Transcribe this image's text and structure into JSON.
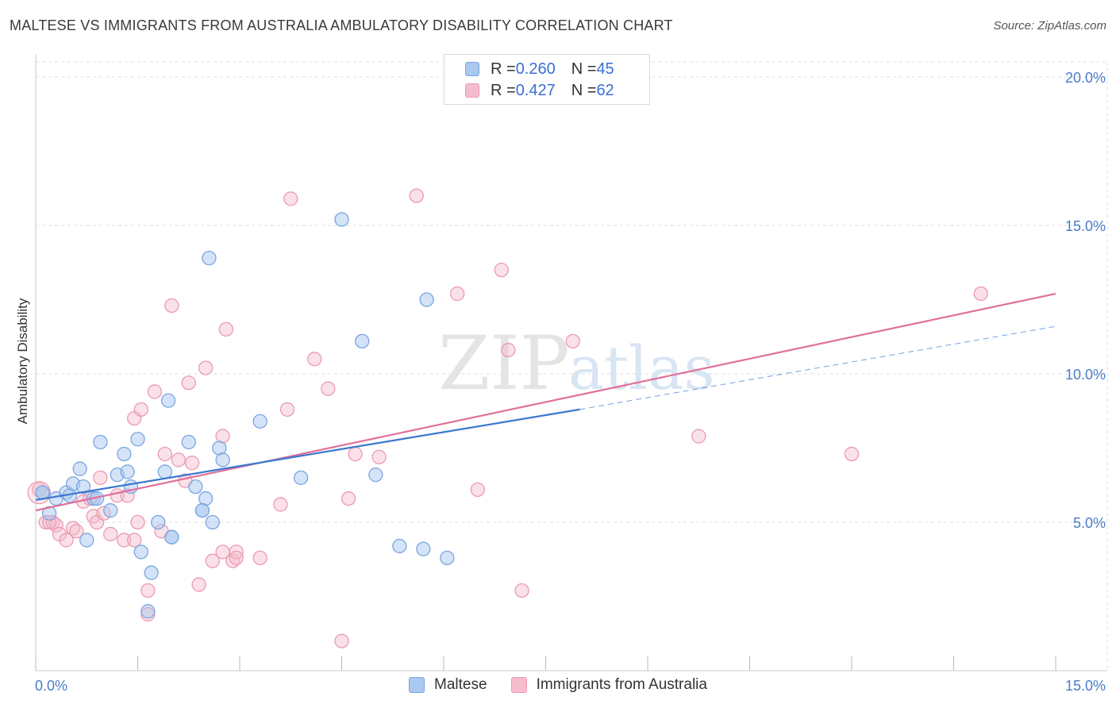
{
  "title": "MALTESE VS IMMIGRANTS FROM AUSTRALIA AMBULATORY DISABILITY CORRELATION CHART",
  "source": "Source: ZipAtlas.com",
  "watermark": {
    "zip": "ZIP",
    "atlas": "atlas"
  },
  "legend": {
    "rows": [
      {
        "r_label": "R = ",
        "r_value": "0.260",
        "n_label": "N = ",
        "n_value": "45"
      },
      {
        "r_label": "R = ",
        "r_value": "0.427",
        "n_label": "N = ",
        "n_value": "62"
      }
    ]
  },
  "bottom_legend": {
    "series1": "Maltese",
    "series2": "Immigrants from Australia"
  },
  "colors": {
    "blue_fill": "#aac8f0",
    "blue_stroke": "#7aa6e0",
    "blue_line": "#3a78d0",
    "pink_fill": "#f5bccd",
    "pink_stroke": "#eb9ab3",
    "pink_line": "#e0709a",
    "tick": "#4a7cc9",
    "grid": "#dddddd"
  },
  "chart_data": {
    "type": "scatter",
    "title": "MALTESE VS IMMIGRANTS FROM AUSTRALIA AMBULATORY DISABILITY CORRELATION CHART",
    "xlabel": "",
    "ylabel": "Ambulatory Disability",
    "xlim": [
      0,
      15
    ],
    "ylim": [
      0,
      20
    ],
    "x_tick_labels": [
      "0.0%",
      "15.0%"
    ],
    "y_ticks": [
      5,
      10,
      15,
      20
    ],
    "y_tick_labels": [
      "5.0%",
      "10.0%",
      "15.0%",
      "20.0%"
    ],
    "grid": true,
    "series": [
      {
        "name": "Maltese",
        "r": 0.26,
        "n": 45,
        "trend": {
          "x0": 0.0,
          "y0": 5.75,
          "x1": 8.0,
          "y1": 8.8,
          "dash_x1": 15.0,
          "dash_y1": 11.6
        },
        "points": [
          [
            0.1,
            6.0
          ],
          [
            0.2,
            5.3
          ],
          [
            0.3,
            5.8
          ],
          [
            0.45,
            6.0
          ],
          [
            0.5,
            5.9
          ],
          [
            0.55,
            6.3
          ],
          [
            0.65,
            6.8
          ],
          [
            0.7,
            6.2
          ],
          [
            0.75,
            4.4
          ],
          [
            0.85,
            5.8
          ],
          [
            0.9,
            5.8
          ],
          [
            0.95,
            7.7
          ],
          [
            1.1,
            5.4
          ],
          [
            1.2,
            6.6
          ],
          [
            1.3,
            7.3
          ],
          [
            1.35,
            6.7
          ],
          [
            1.4,
            6.2
          ],
          [
            1.5,
            7.8
          ],
          [
            1.55,
            4.0
          ],
          [
            1.7,
            3.3
          ],
          [
            1.65,
            2.0
          ],
          [
            1.8,
            5.0
          ],
          [
            1.9,
            6.7
          ],
          [
            1.95,
            9.1
          ],
          [
            2.0,
            4.5
          ],
          [
            2.25,
            7.7
          ],
          [
            2.35,
            6.2
          ],
          [
            2.45,
            5.4
          ],
          [
            2.5,
            5.8
          ],
          [
            2.6,
            5.0
          ],
          [
            2.55,
            13.9
          ],
          [
            2.7,
            7.5
          ],
          [
            2.75,
            7.1
          ],
          [
            3.3,
            8.4
          ],
          [
            3.9,
            6.5
          ],
          [
            4.5,
            15.2
          ],
          [
            4.8,
            11.1
          ],
          [
            5.0,
            6.6
          ],
          [
            5.35,
            4.2
          ],
          [
            5.7,
            4.1
          ],
          [
            5.75,
            12.5
          ],
          [
            6.05,
            3.8
          ],
          [
            2.45,
            5.4
          ],
          [
            0.1,
            6.0
          ],
          [
            2.0,
            4.5
          ]
        ]
      },
      {
        "name": "Immigrants from Australia",
        "r": 0.427,
        "n": 62,
        "trend": {
          "x0": 0.0,
          "y0": 5.4,
          "x1": 15.0,
          "y1": 12.7
        },
        "points": [
          [
            0.05,
            6.1
          ],
          [
            0.15,
            5.0
          ],
          [
            0.25,
            5.0
          ],
          [
            0.3,
            4.9
          ],
          [
            0.35,
            4.6
          ],
          [
            0.45,
            4.4
          ],
          [
            0.55,
            4.8
          ],
          [
            0.6,
            4.7
          ],
          [
            0.7,
            5.7
          ],
          [
            0.8,
            5.8
          ],
          [
            0.85,
            5.2
          ],
          [
            0.9,
            5.0
          ],
          [
            0.95,
            6.5
          ],
          [
            1.0,
            5.3
          ],
          [
            1.1,
            4.6
          ],
          [
            1.2,
            5.9
          ],
          [
            1.3,
            4.4
          ],
          [
            1.35,
            5.9
          ],
          [
            1.45,
            8.5
          ],
          [
            1.5,
            5.0
          ],
          [
            1.55,
            8.8
          ],
          [
            1.65,
            2.7
          ],
          [
            1.65,
            1.9
          ],
          [
            1.75,
            9.4
          ],
          [
            1.85,
            4.7
          ],
          [
            1.9,
            7.3
          ],
          [
            2.0,
            12.3
          ],
          [
            2.1,
            7.1
          ],
          [
            2.2,
            6.4
          ],
          [
            2.25,
            9.7
          ],
          [
            2.3,
            7.0
          ],
          [
            2.4,
            2.9
          ],
          [
            2.5,
            10.2
          ],
          [
            2.6,
            3.7
          ],
          [
            2.75,
            7.9
          ],
          [
            2.75,
            4.0
          ],
          [
            2.8,
            11.5
          ],
          [
            2.9,
            3.7
          ],
          [
            2.95,
            4.0
          ],
          [
            3.3,
            3.8
          ],
          [
            3.6,
            5.6
          ],
          [
            3.7,
            8.8
          ],
          [
            3.75,
            15.9
          ],
          [
            4.1,
            10.5
          ],
          [
            4.3,
            9.5
          ],
          [
            4.5,
            1.0
          ],
          [
            4.6,
            5.8
          ],
          [
            4.7,
            7.3
          ],
          [
            5.05,
            7.2
          ],
          [
            5.6,
            16.0
          ],
          [
            6.2,
            12.7
          ],
          [
            6.5,
            6.1
          ],
          [
            6.85,
            13.5
          ],
          [
            6.95,
            10.8
          ],
          [
            7.15,
            2.7
          ],
          [
            7.9,
            11.1
          ],
          [
            9.75,
            7.9
          ],
          [
            12.0,
            7.3
          ],
          [
            13.9,
            12.7
          ],
          [
            2.95,
            3.8
          ],
          [
            1.45,
            4.4
          ],
          [
            0.2,
            5.0
          ]
        ]
      }
    ]
  }
}
